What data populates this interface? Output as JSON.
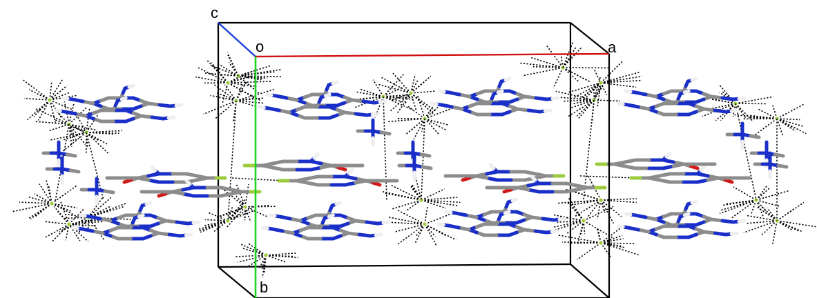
{
  "figure": {
    "axes": {
      "c_label": "c",
      "o_label": "o",
      "a_label": "a",
      "b_label": "b"
    },
    "colors": {
      "a_axis": "#d01010",
      "b_axis": "#1ed21e",
      "c_axis": "#1a3fd6",
      "carbon": "#8c8c8c",
      "nitrogen": "#1a2fc8",
      "oxygen": "#d21a1a",
      "hydrogen": "#eeeeee",
      "fluorine": "#9ccc3c",
      "contact": "#000000"
    },
    "atom_element_names": [
      "carbon",
      "nitrogen",
      "oxygen",
      "hydrogen",
      "fluorine"
    ]
  }
}
